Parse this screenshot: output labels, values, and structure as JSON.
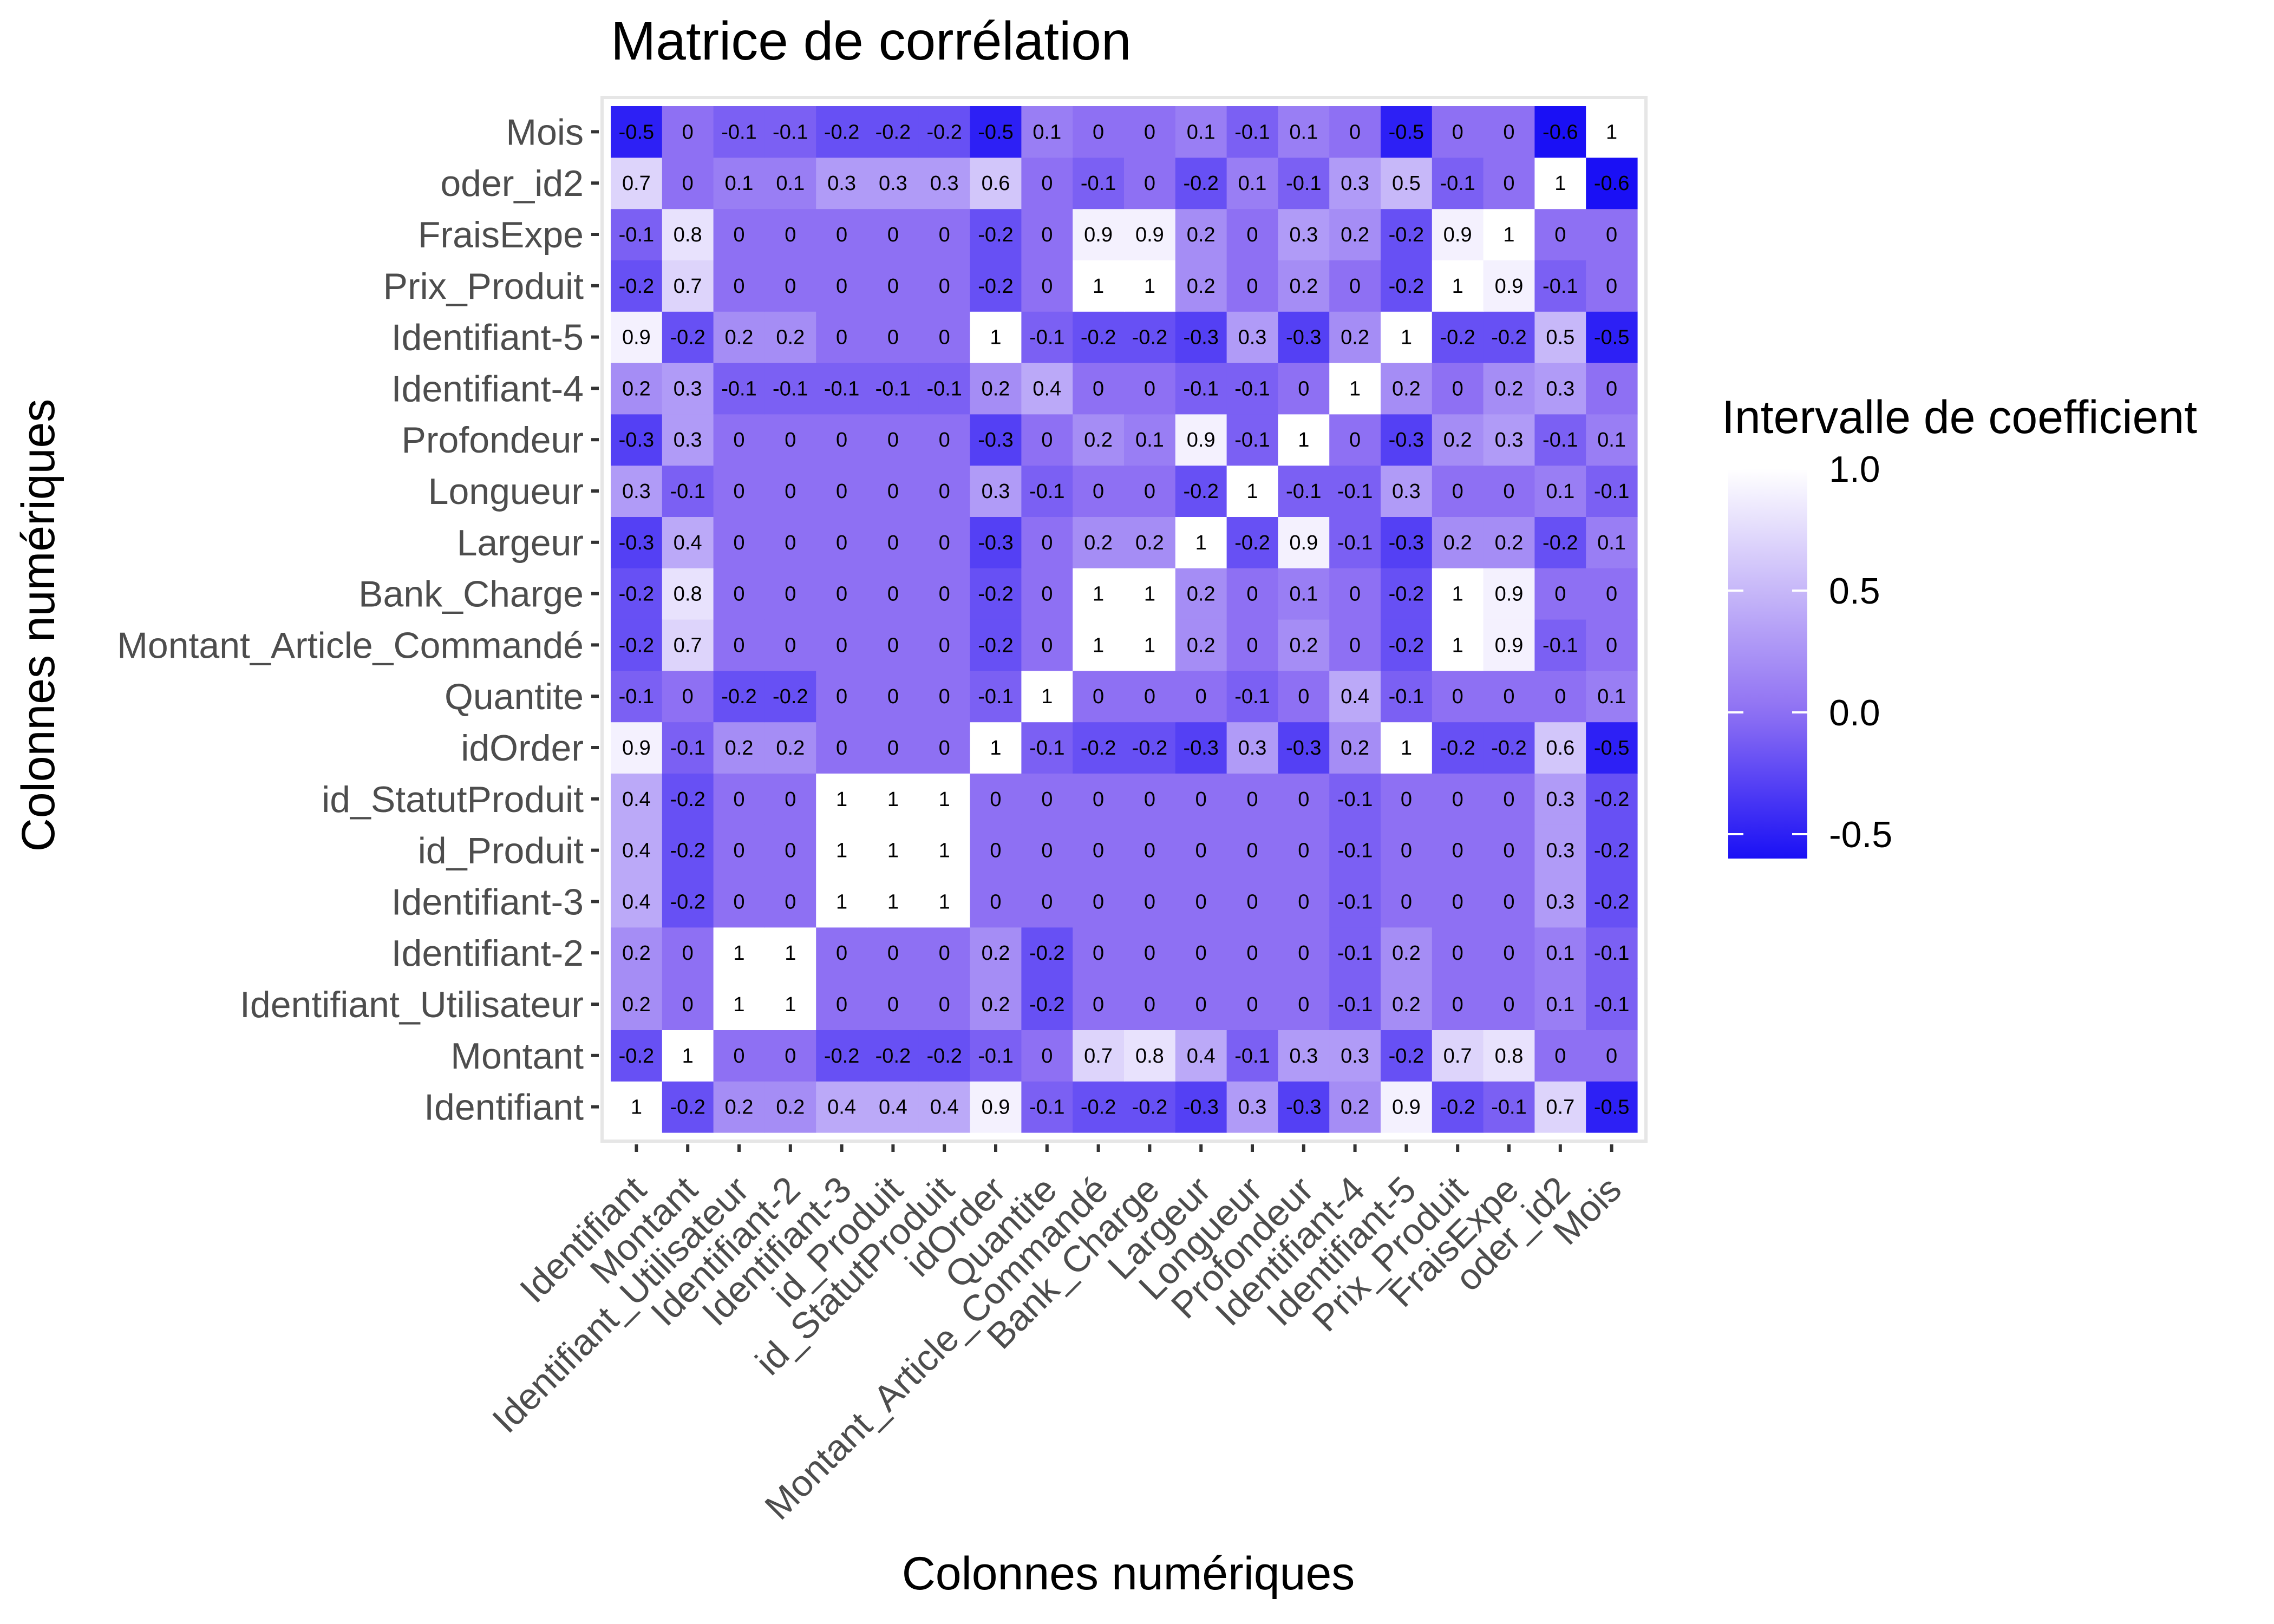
{
  "chart_data": {
    "type": "heatmap",
    "title": "Matrice de corrélation",
    "xlabel": "Colonnes numériques",
    "ylabel": "Colonnes numériques",
    "variables": [
      "Identifiant",
      "Montant",
      "Identifiant_Utilisateur",
      "Identifiant-2",
      "Identifiant-3",
      "id_Produit",
      "id_StatutProduit",
      "idOrder",
      "Quantite",
      "Montant_Article_Commandé",
      "Bank_Charge",
      "Largeur",
      "Longueur",
      "Profondeur",
      "Identifiant-4",
      "Identifiant-5",
      "Prix_Produit",
      "FraisExpe",
      "oder_id2",
      "Mois"
    ],
    "values": [
      [
        1,
        -0.2,
        0.2,
        0.2,
        0.4,
        0.4,
        0.4,
        0.9,
        -0.1,
        -0.2,
        -0.2,
        -0.3,
        0.3,
        -0.3,
        0.2,
        0.9,
        -0.2,
        -0.1,
        0.7,
        -0.5
      ],
      [
        -0.2,
        1,
        0,
        0,
        -0.2,
        -0.2,
        -0.2,
        -0.1,
        0,
        0.7,
        0.8,
        0.4,
        -0.1,
        0.3,
        0.3,
        -0.2,
        0.7,
        0.8,
        0,
        0
      ],
      [
        0.2,
        0,
        1,
        1,
        0,
        0,
        0,
        0.2,
        -0.2,
        0,
        0,
        0,
        0,
        0,
        -0.1,
        0.2,
        0,
        0,
        0.1,
        -0.1
      ],
      [
        0.2,
        0,
        1,
        1,
        0,
        0,
        0,
        0.2,
        -0.2,
        0,
        0,
        0,
        0,
        0,
        -0.1,
        0.2,
        0,
        0,
        0.1,
        -0.1
      ],
      [
        0.4,
        -0.2,
        0,
        0,
        1,
        1,
        1,
        0,
        0,
        0,
        0,
        0,
        0,
        0,
        -0.1,
        0,
        0,
        0,
        0.3,
        -0.2
      ],
      [
        0.4,
        -0.2,
        0,
        0,
        1,
        1,
        1,
        0,
        0,
        0,
        0,
        0,
        0,
        0,
        -0.1,
        0,
        0,
        0,
        0.3,
        -0.2
      ],
      [
        0.4,
        -0.2,
        0,
        0,
        1,
        1,
        1,
        0,
        0,
        0,
        0,
        0,
        0,
        0,
        -0.1,
        0,
        0,
        0,
        0.3,
        -0.2
      ],
      [
        0.9,
        -0.1,
        0.2,
        0.2,
        0,
        0,
        0,
        1,
        -0.1,
        -0.2,
        -0.2,
        -0.3,
        0.3,
        -0.3,
        0.2,
        1,
        -0.2,
        -0.2,
        0.6,
        -0.5
      ],
      [
        -0.1,
        0,
        -0.2,
        -0.2,
        0,
        0,
        0,
        -0.1,
        1,
        0,
        0,
        0,
        -0.1,
        0,
        0.4,
        -0.1,
        0,
        0,
        0,
        0.1
      ],
      [
        -0.2,
        0.7,
        0,
        0,
        0,
        0,
        0,
        -0.2,
        0,
        1,
        1,
        0.2,
        0,
        0.2,
        0,
        -0.2,
        1,
        0.9,
        -0.1,
        0
      ],
      [
        -0.2,
        0.8,
        0,
        0,
        0,
        0,
        0,
        -0.2,
        0,
        1,
        1,
        0.2,
        0,
        0.1,
        0,
        -0.2,
        1,
        0.9,
        0,
        0
      ],
      [
        -0.3,
        0.4,
        0,
        0,
        0,
        0,
        0,
        -0.3,
        0,
        0.2,
        0.2,
        1,
        -0.2,
        0.9,
        -0.1,
        -0.3,
        0.2,
        0.2,
        -0.2,
        0.1
      ],
      [
        0.3,
        -0.1,
        0,
        0,
        0,
        0,
        0,
        0.3,
        -0.1,
        0,
        0,
        -0.2,
        1,
        -0.1,
        -0.1,
        0.3,
        0,
        0,
        0.1,
        -0.1
      ],
      [
        -0.3,
        0.3,
        0,
        0,
        0,
        0,
        0,
        -0.3,
        0,
        0.2,
        0.1,
        0.9,
        -0.1,
        1,
        0,
        -0.3,
        0.2,
        0.3,
        -0.1,
        0.1
      ],
      [
        0.2,
        0.3,
        -0.1,
        -0.1,
        -0.1,
        -0.1,
        -0.1,
        0.2,
        0.4,
        0,
        0,
        -0.1,
        -0.1,
        0,
        1,
        0.2,
        0,
        0.2,
        0.3,
        0
      ],
      [
        0.9,
        -0.2,
        0.2,
        0.2,
        0,
        0,
        0,
        1,
        -0.1,
        -0.2,
        -0.2,
        -0.3,
        0.3,
        -0.3,
        0.2,
        1,
        -0.2,
        -0.2,
        0.5,
        -0.5
      ],
      [
        -0.2,
        0.7,
        0,
        0,
        0,
        0,
        0,
        -0.2,
        0,
        1,
        1,
        0.2,
        0,
        0.2,
        0,
        -0.2,
        1,
        0.9,
        -0.1,
        0
      ],
      [
        -0.1,
        0.8,
        0,
        0,
        0,
        0,
        0,
        -0.2,
        0,
        0.9,
        0.9,
        0.2,
        0,
        0.3,
        0.2,
        -0.2,
        0.9,
        1,
        0,
        0
      ],
      [
        0.7,
        0,
        0.1,
        0.1,
        0.3,
        0.3,
        0.3,
        0.6,
        0,
        -0.1,
        0,
        -0.2,
        0.1,
        -0.1,
        0.3,
        0.5,
        -0.1,
        0,
        1,
        -0.6
      ],
      [
        -0.5,
        0,
        -0.1,
        -0.1,
        -0.2,
        -0.2,
        -0.2,
        -0.5,
        0.1,
        0,
        0,
        0.1,
        -0.1,
        0.1,
        0,
        -0.5,
        0,
        0,
        -0.6,
        1
      ]
    ],
    "legend": {
      "title": "Intervalle de coefficient",
      "ticks": [
        1.0,
        0.5,
        0.0,
        -0.5
      ],
      "tick_labels": [
        "1.0",
        "0.5",
        "0.0",
        "-0.5"
      ],
      "range": [
        -0.6,
        1.0
      ],
      "placement": "right"
    },
    "colors": {
      "low": "#1a10f5",
      "mid": "#8e70f3",
      "high": "#ffffff"
    },
    "grid": false
  }
}
